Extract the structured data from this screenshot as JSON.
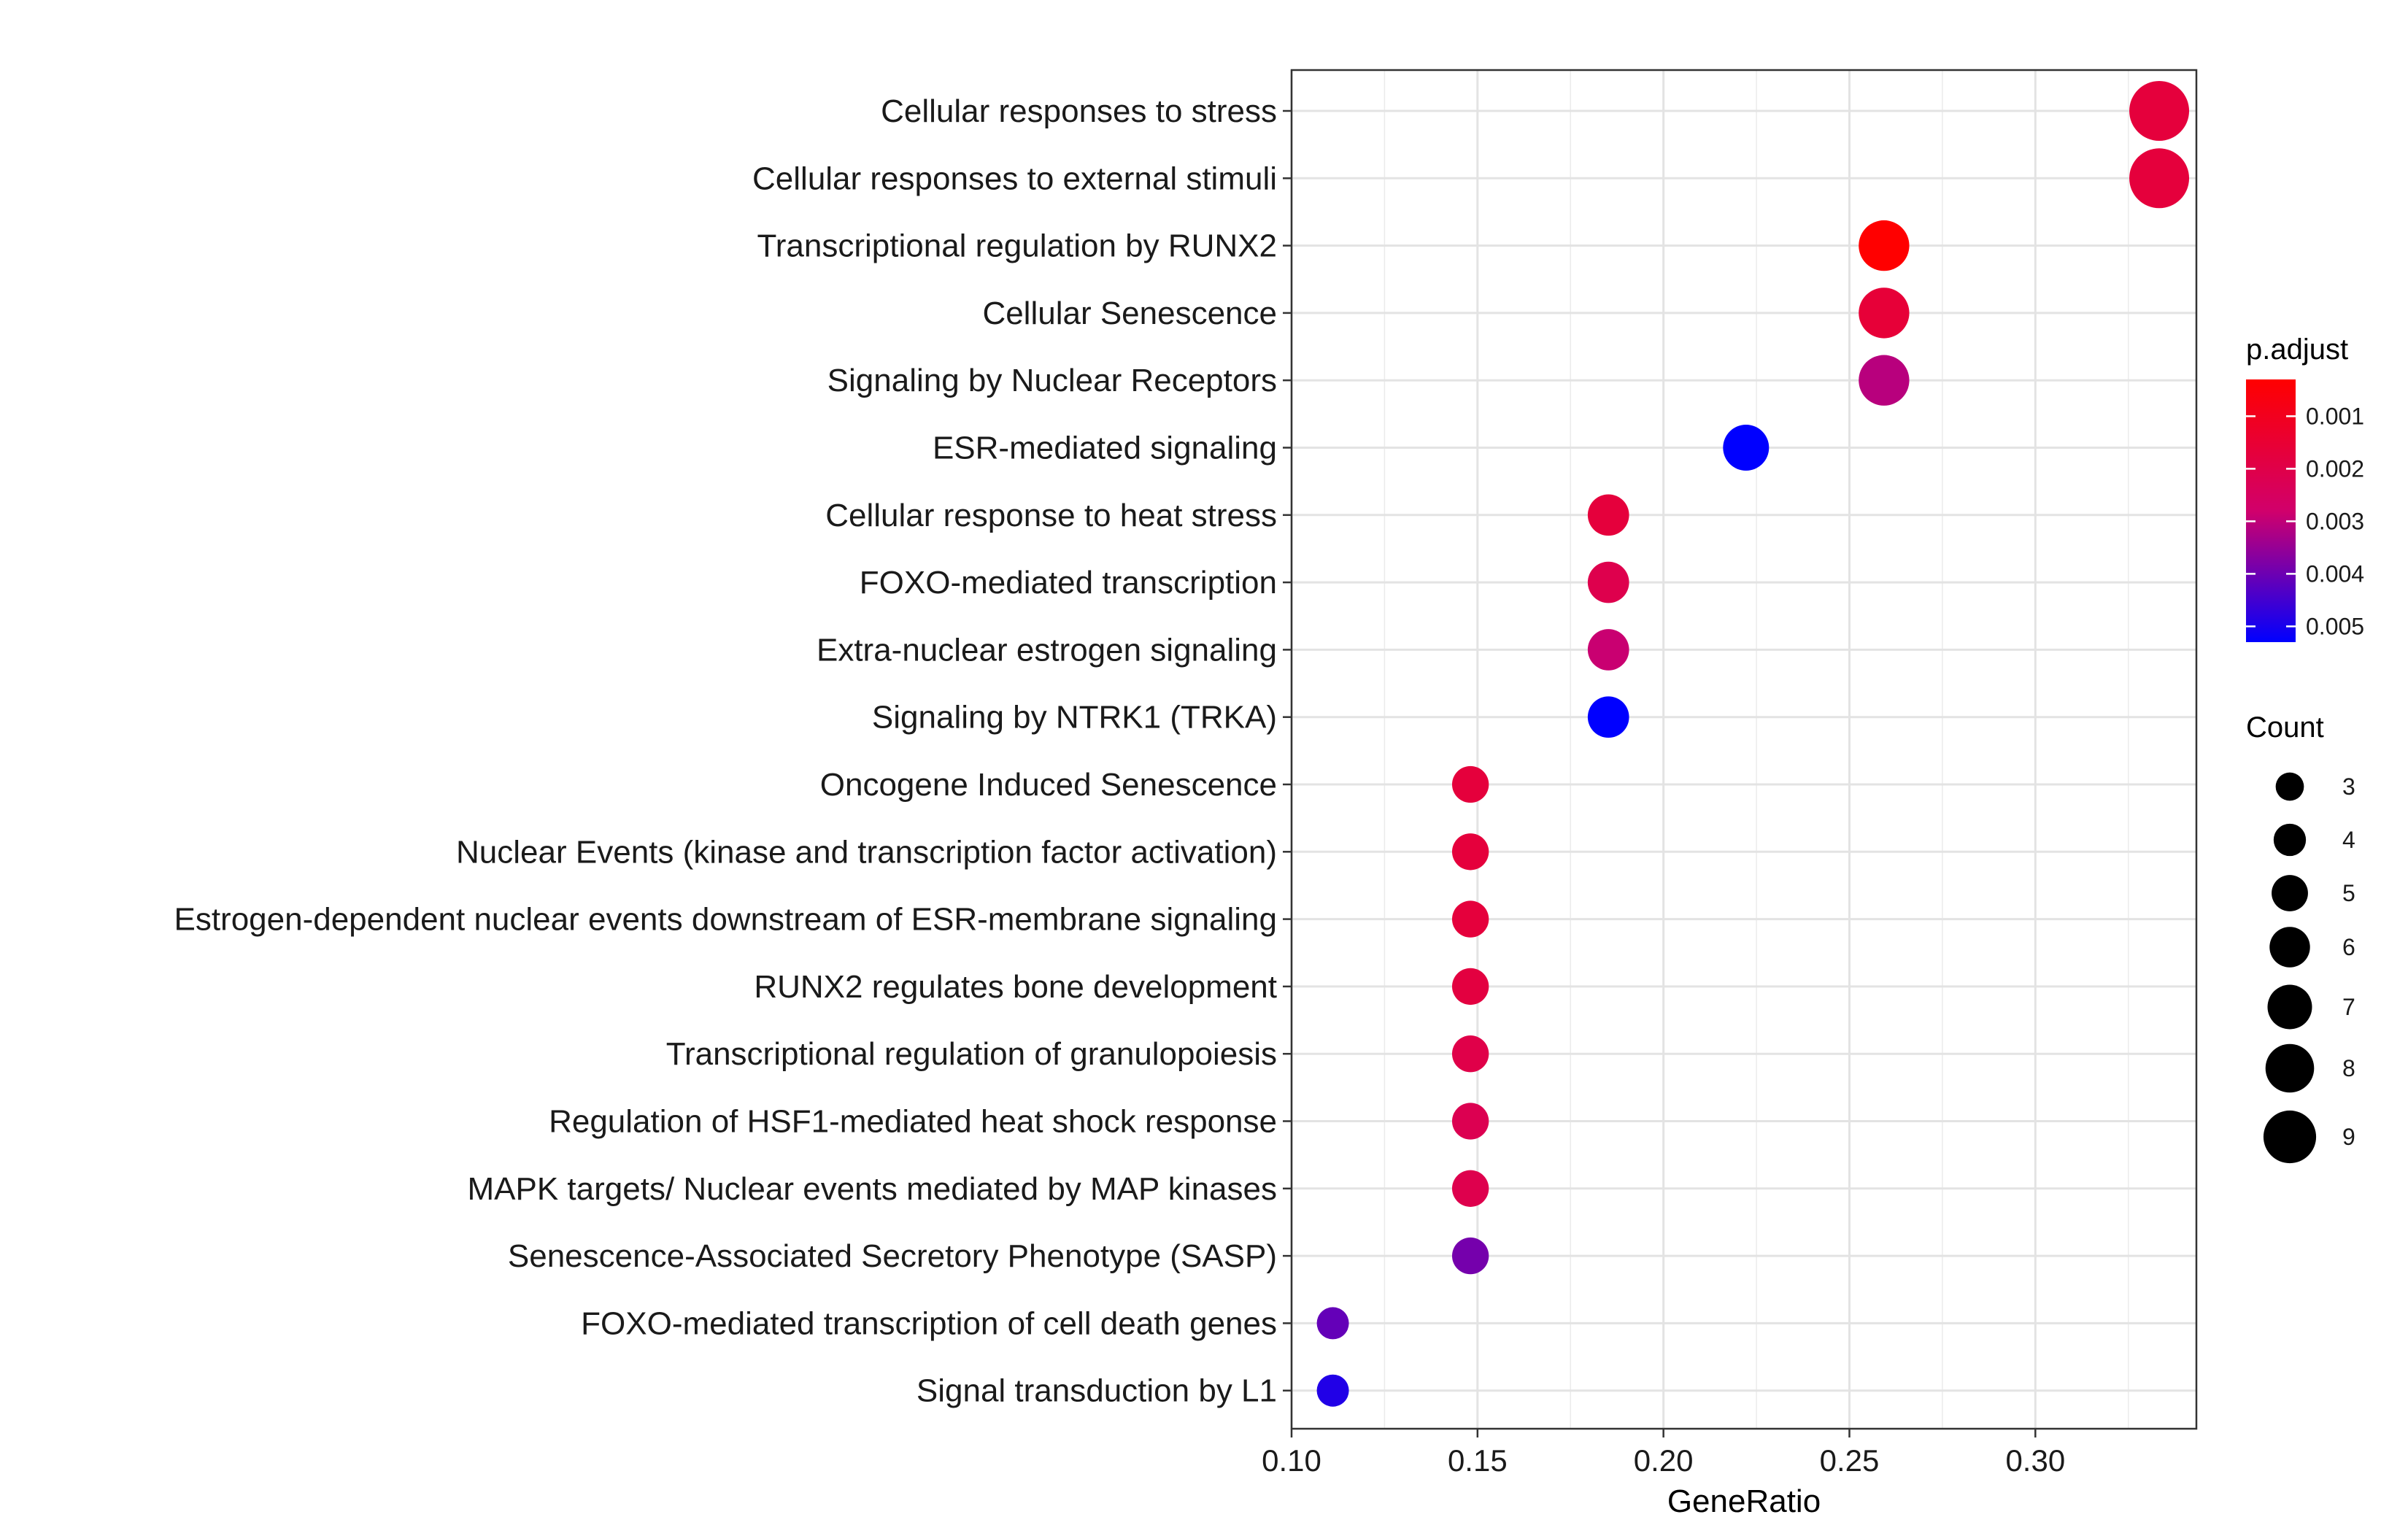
{
  "chart_data": {
    "type": "scatter",
    "title": "",
    "xlabel": "GeneRatio",
    "ylabel": "",
    "xlim": [
      0.1,
      0.3433
    ],
    "xticks": [
      0.1,
      0.15,
      0.2,
      0.25,
      0.3
    ],
    "xtick_labels": [
      "0.10",
      "0.15",
      "0.20",
      "0.25",
      "0.30"
    ],
    "grid": true,
    "categories": [
      "Cellular responses to stress",
      "Cellular responses to external stimuli",
      "Transcriptional regulation by RUNX2",
      "Cellular Senescence",
      "Signaling by Nuclear Receptors",
      "ESR-mediated signaling",
      "Cellular response to heat stress",
      "FOXO-mediated transcription",
      "Extra-nuclear estrogen signaling",
      "Signaling by NTRK1 (TRKA)",
      "Oncogene Induced Senescence",
      "Nuclear Events (kinase and transcription factor activation)",
      "Estrogen-dependent nuclear events downstream of ESR-membrane signaling",
      "RUNX2 regulates bone development",
      "Transcriptional regulation of granulopoiesis",
      "Regulation of HSF1-mediated heat shock response",
      "MAPK targets/ Nuclear events mediated by MAP kinases",
      "Senescence-Associated Secretory Phenotype (SASP)",
      "FOXO-mediated transcription of cell death genes",
      "Signal transduction by L1"
    ],
    "gene_ratio": [
      0.3333,
      0.3333,
      0.2593,
      0.2593,
      0.2593,
      0.2222,
      0.1852,
      0.1852,
      0.1852,
      0.1852,
      0.1481,
      0.1481,
      0.1481,
      0.1481,
      0.1481,
      0.1481,
      0.1481,
      0.1481,
      0.1111,
      0.1111
    ],
    "count": [
      9,
      9,
      7,
      7,
      7,
      6,
      5,
      5,
      5,
      5,
      4,
      4,
      4,
      4,
      4,
      4,
      4,
      4,
      3,
      3
    ],
    "p_adjust": [
      0.0017,
      0.0017,
      0.0003,
      0.0016,
      0.0031,
      0.0053,
      0.0017,
      0.0021,
      0.0029,
      0.0053,
      0.0017,
      0.0017,
      0.0017,
      0.0018,
      0.002,
      0.0022,
      0.0021,
      0.0039,
      0.0041,
      0.0049
    ],
    "color_legend": {
      "title": "p.adjust",
      "ticks": [
        0.001,
        0.002,
        0.003,
        0.004,
        0.005
      ],
      "tick_labels": [
        "0.001",
        "0.002",
        "0.003",
        "0.004",
        "0.005"
      ],
      "range": [
        0.0003,
        0.0053
      ],
      "low_color": "#ff0000",
      "high_color": "#0000ff"
    },
    "size_legend": {
      "title": "Count",
      "values": [
        3,
        4,
        5,
        6,
        7,
        8,
        9
      ],
      "labels": [
        "3",
        "4",
        "5",
        "6",
        "7",
        "8",
        "9"
      ]
    },
    "legend_position": "right"
  }
}
